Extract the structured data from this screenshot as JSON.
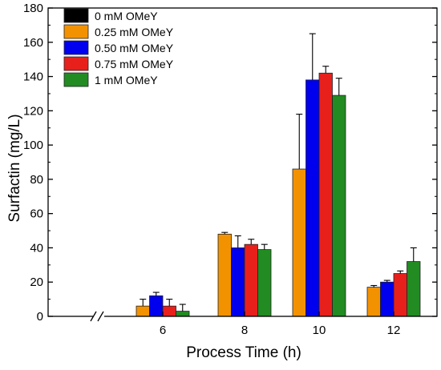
{
  "chart_data": {
    "type": "bar",
    "xlabel": "Process Time (h)",
    "ylabel": "Surfactin (mg/L)",
    "ylim": [
      0,
      180
    ],
    "y_ticks": [
      0,
      20,
      40,
      60,
      80,
      100,
      120,
      140,
      160,
      180
    ],
    "categories": [
      "6",
      "8",
      "10",
      "12"
    ],
    "axis_break": true,
    "legend_placement": "top-left",
    "series": [
      {
        "name": "0 mM OMeY",
        "color": "#000000",
        "values": [
          null,
          null,
          null,
          null
        ],
        "errors": [
          null,
          null,
          null,
          null
        ]
      },
      {
        "name": "0.25 mM OMeY",
        "color": "#f39200",
        "values": [
          6,
          48,
          86,
          17
        ],
        "errors": [
          4,
          1,
          32,
          1
        ]
      },
      {
        "name": "0.50 mM OMeY",
        "color": "#0000ee",
        "values": [
          12,
          40,
          138,
          20
        ],
        "errors": [
          2,
          7,
          27,
          1
        ]
      },
      {
        "name": "0.75 mM OMeY",
        "color": "#e8201c",
        "values": [
          6,
          42,
          142,
          25
        ],
        "errors": [
          4,
          3,
          4,
          1.5
        ]
      },
      {
        "name": "1 mM OMeY",
        "color": "#228b22",
        "values": [
          3,
          39,
          129,
          32
        ],
        "errors": [
          4,
          3,
          10,
          8
        ]
      }
    ]
  }
}
